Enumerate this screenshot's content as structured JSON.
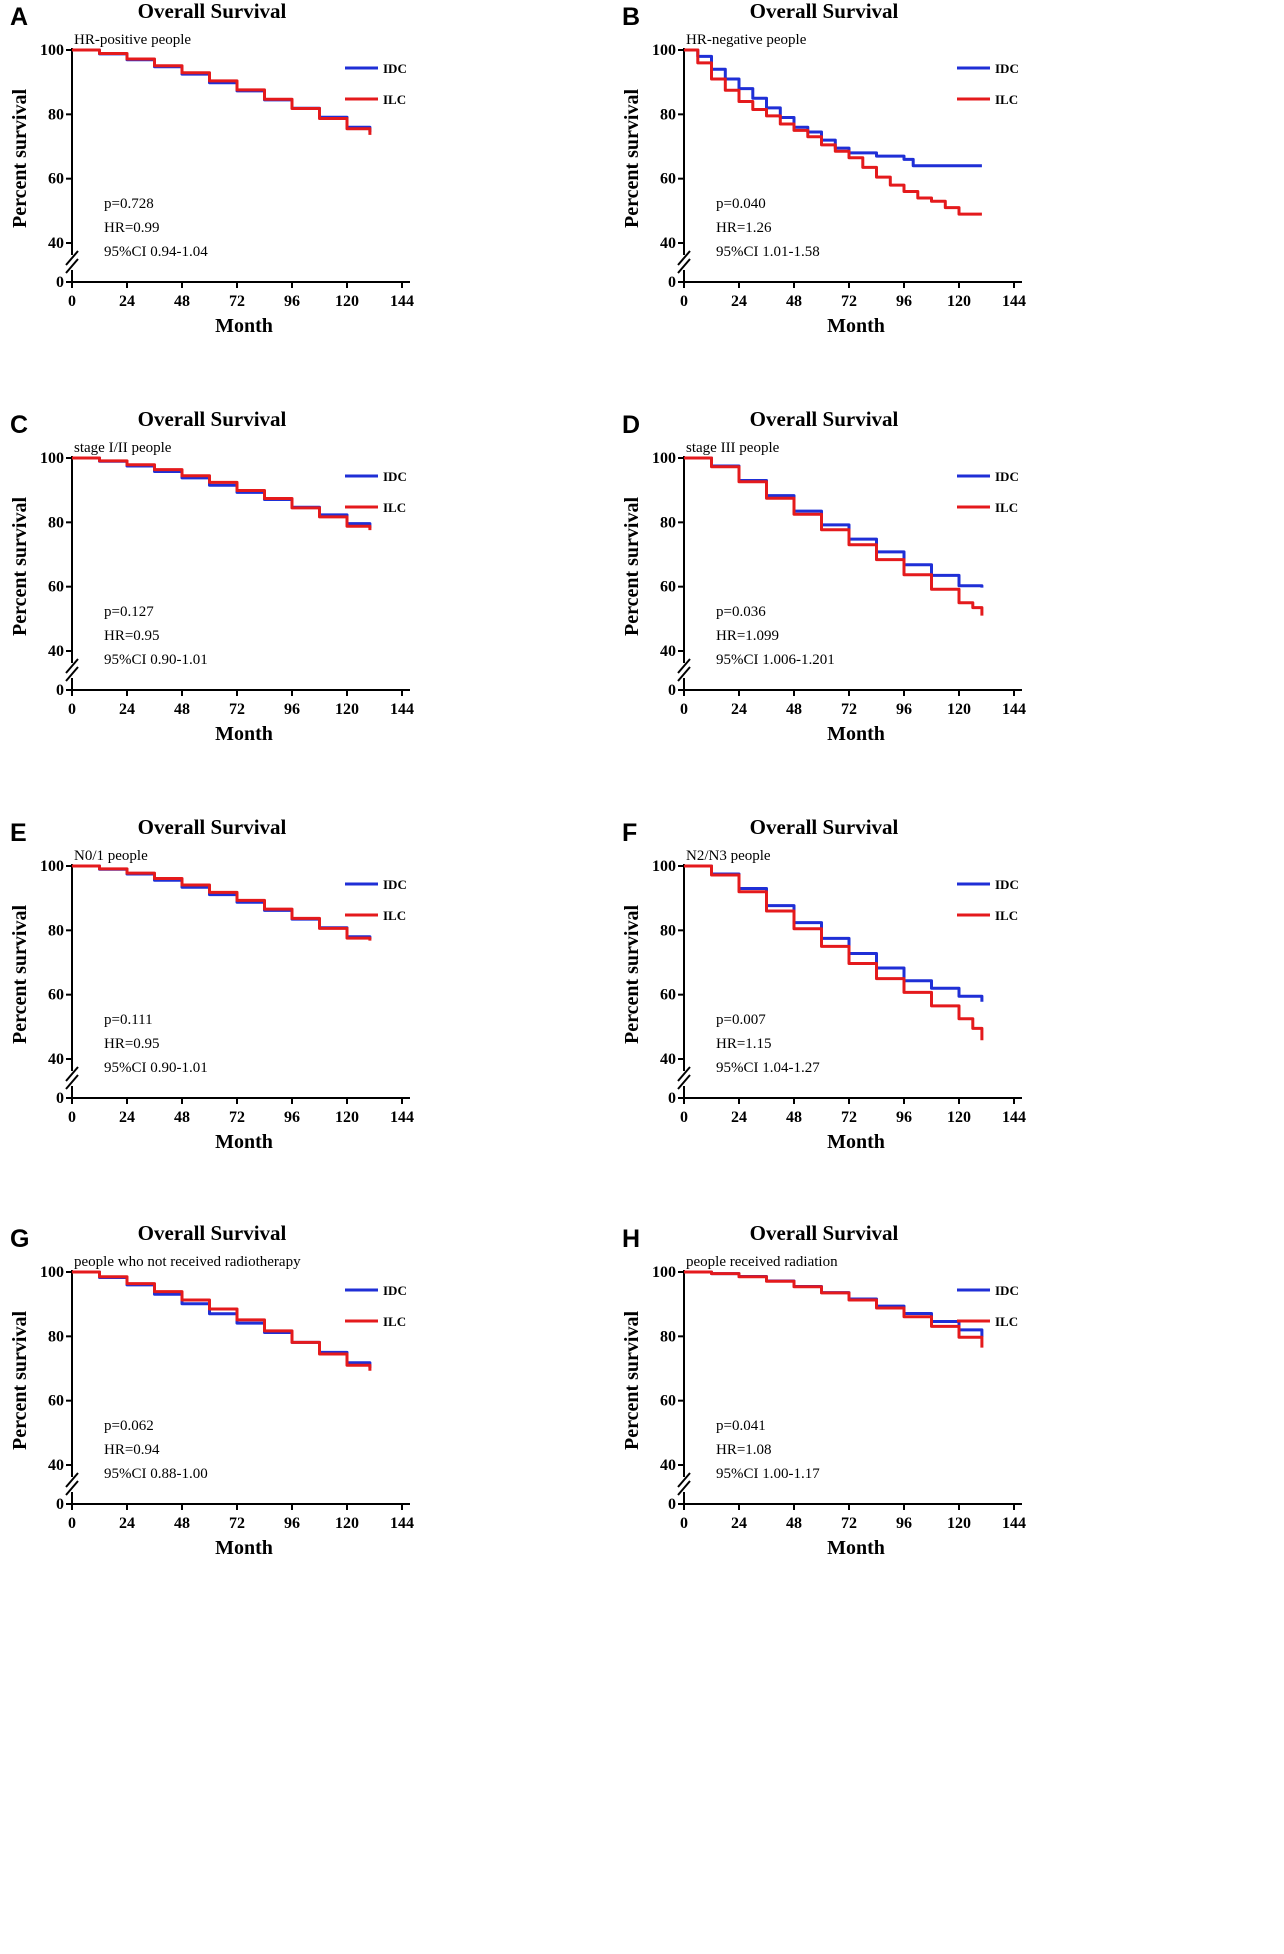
{
  "legend_labels": [
    "IDC",
    "ILC"
  ],
  "colors": {
    "IDC": "#1f2fd6",
    "ILC": "#e41a1c"
  },
  "chart_data": [
    {
      "panel": "A",
      "type": "line",
      "title": "Overall Survival",
      "subtitle": "HR-positive people",
      "xlabel": "Month",
      "ylabel": "Percent survival",
      "x_ticks": [
        0,
        24,
        48,
        72,
        96,
        120,
        144
      ],
      "y_ticks": [
        100,
        80,
        60,
        40
      ],
      "y_break_tick": 0,
      "xlim": [
        0,
        144
      ],
      "ylim": [
        40,
        100
      ],
      "stats": [
        "p=0.728",
        "HR=0.99",
        "95%CI 0.94-1.04"
      ],
      "series": [
        {
          "name": "IDC",
          "x": [
            0,
            12,
            24,
            36,
            48,
            60,
            72,
            84,
            96,
            108,
            120,
            130
          ],
          "y": [
            100,
            98.8,
            97,
            94.8,
            92.5,
            89.8,
            87.3,
            84.5,
            81.9,
            79.1,
            76,
            74.5
          ]
        },
        {
          "name": "ILC",
          "x": [
            0,
            12,
            24,
            36,
            48,
            60,
            72,
            84,
            96,
            108,
            120,
            130
          ],
          "y": [
            100,
            98.9,
            97.2,
            95.1,
            92.9,
            90.4,
            87.6,
            84.7,
            81.8,
            78.7,
            75.5,
            73.6
          ]
        }
      ]
    },
    {
      "panel": "B",
      "type": "line",
      "title": "Overall Survival",
      "subtitle": "HR-negative people",
      "xlabel": "Month",
      "ylabel": "Percent survival",
      "x_ticks": [
        0,
        24,
        48,
        72,
        96,
        120,
        144
      ],
      "y_ticks": [
        100,
        80,
        60,
        40
      ],
      "y_break_tick": 0,
      "xlim": [
        0,
        144
      ],
      "ylim": [
        40,
        100
      ],
      "stats": [
        "p=0.040",
        "HR=1.26",
        "95%CI 1.01-1.58"
      ],
      "series": [
        {
          "name": "IDC",
          "x": [
            0,
            6,
            12,
            18,
            24,
            30,
            36,
            42,
            48,
            54,
            60,
            66,
            72,
            84,
            96,
            100,
            110,
            120,
            130
          ],
          "y": [
            100,
            98,
            94,
            91,
            88,
            85,
            82,
            79,
            76,
            74.5,
            72,
            69.5,
            68,
            67,
            66,
            64,
            64,
            64,
            64
          ]
        },
        {
          "name": "ILC",
          "x": [
            0,
            6,
            12,
            18,
            24,
            30,
            36,
            42,
            48,
            54,
            60,
            66,
            72,
            78,
            84,
            90,
            96,
            102,
            108,
            114,
            120,
            126,
            130
          ],
          "y": [
            100,
            96,
            91,
            87.5,
            84,
            81.5,
            79.5,
            77,
            75,
            73,
            70.5,
            68.5,
            66.5,
            63.5,
            60.5,
            58,
            56,
            54,
            53,
            51,
            49,
            49,
            49
          ]
        }
      ]
    },
    {
      "panel": "C",
      "type": "line",
      "title": "Overall Survival",
      "subtitle": "stage I/II  people",
      "xlabel": "Month",
      "ylabel": "Percent survival",
      "x_ticks": [
        0,
        24,
        48,
        72,
        96,
        120,
        144
      ],
      "y_ticks": [
        100,
        80,
        60,
        40
      ],
      "y_break_tick": 0,
      "xlim": [
        0,
        144
      ],
      "ylim": [
        40,
        100
      ],
      "stats": [
        "p=0.127",
        "HR=0.95",
        "95%CI 0.90-1.01"
      ],
      "series": [
        {
          "name": "IDC",
          "x": [
            0,
            12,
            24,
            36,
            48,
            60,
            72,
            84,
            96,
            108,
            120,
            130
          ],
          "y": [
            100,
            99,
            97.5,
            95.8,
            93.8,
            91.5,
            89.3,
            87.1,
            84.7,
            82.3,
            79.6,
            78.2
          ]
        },
        {
          "name": "ILC",
          "x": [
            0,
            12,
            24,
            36,
            48,
            60,
            72,
            84,
            96,
            108,
            120,
            130
          ],
          "y": [
            100,
            99.1,
            97.9,
            96.4,
            94.5,
            92.4,
            89.9,
            87.4,
            84.5,
            81.7,
            78.8,
            77.6
          ]
        }
      ]
    },
    {
      "panel": "D",
      "type": "line",
      "title": "Overall Survival",
      "subtitle": "stage III people",
      "xlabel": "Month",
      "ylabel": "Percent survival",
      "x_ticks": [
        0,
        24,
        48,
        72,
        96,
        120,
        144
      ],
      "y_ticks": [
        100,
        80,
        60,
        40
      ],
      "y_break_tick": 0,
      "xlim": [
        0,
        144
      ],
      "ylim": [
        40,
        100
      ],
      "stats": [
        "p=0.036",
        "HR=1.099",
        "95%CI 1.006-1.201"
      ],
      "series": [
        {
          "name": "IDC",
          "x": [
            0,
            12,
            24,
            36,
            48,
            60,
            72,
            84,
            96,
            108,
            120,
            130
          ],
          "y": [
            100,
            97.5,
            93,
            88.3,
            83.5,
            79.2,
            74.8,
            70.8,
            66.8,
            63.5,
            60.3,
            59.7
          ]
        },
        {
          "name": "ILC",
          "x": [
            0,
            12,
            24,
            36,
            48,
            60,
            72,
            84,
            96,
            108,
            120,
            126,
            130
          ],
          "y": [
            100,
            97.3,
            92.6,
            87.5,
            82.5,
            77.7,
            73,
            68.4,
            63.7,
            59.2,
            55,
            53.5,
            51
          ]
        }
      ]
    },
    {
      "panel": "E",
      "type": "line",
      "title": "Overall Survival",
      "subtitle": "N0/1  people",
      "xlabel": "Month",
      "ylabel": "Percent survival",
      "x_ticks": [
        0,
        24,
        48,
        72,
        96,
        120,
        144
      ],
      "y_ticks": [
        100,
        80,
        60,
        40
      ],
      "y_break_tick": 0,
      "xlim": [
        0,
        144
      ],
      "ylim": [
        40,
        100
      ],
      "stats": [
        "p=0.111",
        "HR=0.95",
        "95%CI 0.90-1.01"
      ],
      "series": [
        {
          "name": "IDC",
          "x": [
            0,
            12,
            24,
            36,
            48,
            60,
            72,
            84,
            96,
            108,
            120,
            130
          ],
          "y": [
            100,
            99,
            97.5,
            95.6,
            93.4,
            91.1,
            88.7,
            86.2,
            83.5,
            80.8,
            78,
            77.3
          ]
        },
        {
          "name": "ILC",
          "x": [
            0,
            12,
            24,
            36,
            48,
            60,
            72,
            84,
            96,
            108,
            120,
            130
          ],
          "y": [
            100,
            99.1,
            97.8,
            96.1,
            94.1,
            91.8,
            89.3,
            86.6,
            83.7,
            80.6,
            77.6,
            76.8
          ]
        }
      ]
    },
    {
      "panel": "F",
      "type": "line",
      "title": "Overall Survival",
      "subtitle": "N2/N3 people",
      "xlabel": "Month",
      "ylabel": "Percent survival",
      "x_ticks": [
        0,
        24,
        48,
        72,
        96,
        120,
        144
      ],
      "y_ticks": [
        100,
        80,
        60,
        40
      ],
      "y_break_tick": 0,
      "xlim": [
        0,
        144
      ],
      "ylim": [
        40,
        100
      ],
      "stats": [
        "p=0.007",
        "HR=1.15",
        "95%CI 1.04-1.27"
      ],
      "series": [
        {
          "name": "IDC",
          "x": [
            0,
            12,
            24,
            36,
            48,
            60,
            72,
            84,
            96,
            108,
            120,
            130
          ],
          "y": [
            100,
            97.5,
            93,
            87.7,
            82.4,
            77.5,
            72.8,
            68.3,
            64.3,
            62,
            59.5,
            57.8
          ]
        },
        {
          "name": "ILC",
          "x": [
            0,
            12,
            24,
            36,
            48,
            60,
            72,
            84,
            96,
            108,
            120,
            126,
            130
          ],
          "y": [
            100,
            97.2,
            92,
            86,
            80.5,
            75,
            69.7,
            65,
            60.7,
            56.5,
            52.5,
            49.5,
            45.8
          ]
        }
      ]
    },
    {
      "panel": "G",
      "type": "line",
      "title": "Overall Survival",
      "subtitle": "people who not received radiotherapy",
      "xlabel": "Month",
      "ylabel": "Percent survival",
      "x_ticks": [
        0,
        24,
        48,
        72,
        96,
        120,
        144
      ],
      "y_ticks": [
        100,
        80,
        60,
        40
      ],
      "y_break_tick": 0,
      "xlim": [
        0,
        144
      ],
      "ylim": [
        40,
        100
      ],
      "stats": [
        "p=0.062",
        "HR=0.94",
        "95%CI 0.88-1.00"
      ],
      "series": [
        {
          "name": "IDC",
          "x": [
            0,
            12,
            24,
            36,
            48,
            60,
            72,
            84,
            96,
            108,
            120,
            130
          ],
          "y": [
            100,
            98.3,
            96,
            93.1,
            90.1,
            87,
            84.1,
            81.2,
            78.1,
            75,
            71.8,
            70.2
          ]
        },
        {
          "name": "ILC",
          "x": [
            0,
            12,
            24,
            36,
            48,
            60,
            72,
            84,
            96,
            108,
            120,
            130
          ],
          "y": [
            100,
            98.5,
            96.4,
            93.9,
            91.3,
            88.5,
            85.1,
            81.7,
            78.1,
            74.5,
            71,
            69.3
          ]
        }
      ]
    },
    {
      "panel": "H",
      "type": "line",
      "title": "Overall Survival",
      "subtitle": "people received radiation",
      "xlabel": "Month",
      "ylabel": "Percent survival",
      "x_ticks": [
        0,
        24,
        48,
        72,
        96,
        120,
        144
      ],
      "y_ticks": [
        100,
        80,
        60,
        40
      ],
      "y_break_tick": 0,
      "xlim": [
        0,
        144
      ],
      "ylim": [
        40,
        100
      ],
      "stats": [
        "p=0.041",
        "HR=1.08",
        "95%CI 1.00-1.17"
      ],
      "series": [
        {
          "name": "IDC",
          "x": [
            0,
            12,
            24,
            36,
            48,
            60,
            72,
            84,
            96,
            108,
            120,
            130
          ],
          "y": [
            100,
            99.5,
            98.6,
            97.2,
            95.5,
            93.6,
            91.6,
            89.4,
            87.1,
            84.6,
            82,
            79.8
          ]
        },
        {
          "name": "ILC",
          "x": [
            0,
            12,
            24,
            36,
            48,
            60,
            72,
            84,
            96,
            108,
            120,
            130
          ],
          "y": [
            100,
            99.5,
            98.5,
            97.1,
            95.4,
            93.5,
            91.3,
            88.8,
            86.1,
            83.1,
            79.7,
            76.5
          ]
        }
      ]
    }
  ]
}
